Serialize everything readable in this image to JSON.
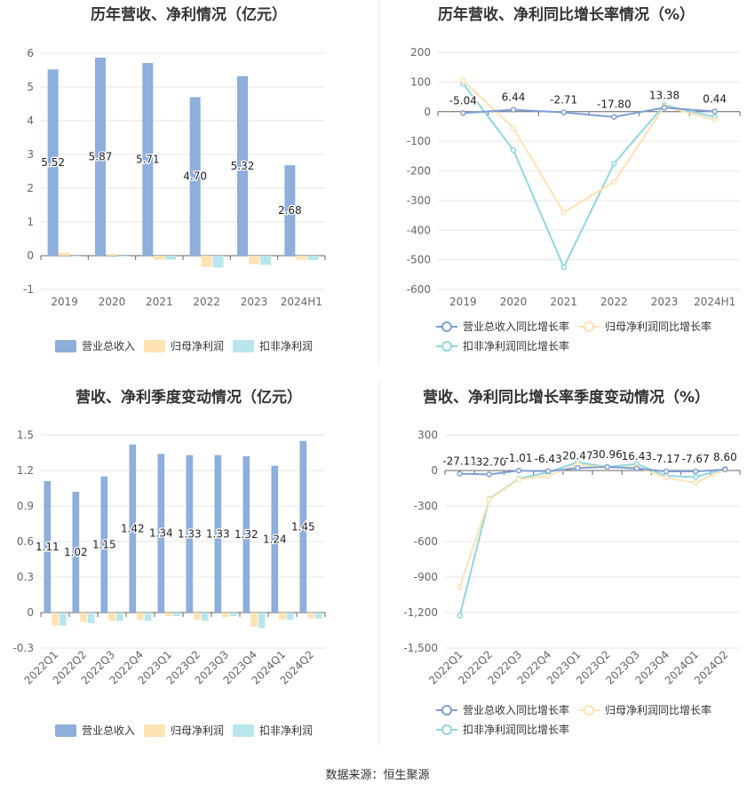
{
  "source": "数据来源：恒生聚源",
  "chart_data": [
    {
      "type": "bar",
      "title": "历年营收、净利情况（亿元）",
      "categories": [
        "2019",
        "2020",
        "2021",
        "2022",
        "2023",
        "2024H1"
      ],
      "ylim": [
        -1,
        6
      ],
      "yticks": [
        "-1",
        "0",
        "1",
        "2",
        "3",
        "4",
        "5",
        "6"
      ],
      "legend_position": "bottom",
      "grid": true,
      "series": [
        {
          "name": "营业总收入",
          "color": "#8eaedc",
          "values": [
            5.52,
            5.87,
            5.71,
            4.7,
            5.32,
            2.68
          ],
          "labels": [
            "5.52",
            "5.87",
            "5.71",
            "4.70",
            "5.32",
            "2.68"
          ]
        },
        {
          "name": "归母净利润",
          "color": "#fde2b3",
          "values": [
            0.09,
            0.05,
            -0.12,
            -0.33,
            -0.25,
            -0.12
          ]
        },
        {
          "name": "扣非净利润",
          "color": "#b8e6ea",
          "values": [
            -0.01,
            -0.03,
            -0.12,
            -0.35,
            -0.27,
            -0.13
          ]
        }
      ]
    },
    {
      "type": "line",
      "title": "历年营收、净利同比增长率情况（%）",
      "categories": [
        "2019",
        "2020",
        "2021",
        "2022",
        "2023",
        "2024H1"
      ],
      "ylim": [
        -600,
        200
      ],
      "yticks": [
        "-600",
        "-500",
        "-400",
        "-300",
        "-200",
        "-100",
        "0",
        "100",
        "200"
      ],
      "legend_position": "bottom",
      "grid": true,
      "series": [
        {
          "name": "营业总收入同比增长率",
          "color": "#7f9fd3",
          "values": [
            -5.04,
            6.44,
            -2.71,
            -17.8,
            13.38,
            0.44
          ],
          "labels": [
            "-5.04",
            "6.44",
            "-2.71",
            "-17.80",
            "13.38",
            "0.44"
          ]
        },
        {
          "name": "归母净利润同比增长率",
          "color": "#fde2b3",
          "values": [
            105,
            -55,
            -340,
            -237,
            18,
            -28
          ]
        },
        {
          "name": "扣非净利润同比增长率",
          "color": "#8fd7dd",
          "values": [
            95,
            -130,
            -525,
            -175,
            22,
            -18
          ]
        }
      ]
    },
    {
      "type": "bar",
      "title": "营收、净利季度变动情况（亿元）",
      "categories": [
        "2022Q1",
        "2022Q2",
        "2022Q3",
        "2022Q4",
        "2023Q1",
        "2023Q2",
        "2023Q3",
        "2023Q4",
        "2024Q1",
        "2024Q2"
      ],
      "ylim": [
        -0.3,
        1.5
      ],
      "yticks": [
        "-0.3",
        "0",
        "0.3",
        "0.6",
        "0.9",
        "1.2",
        "1.5"
      ],
      "legend_position": "bottom",
      "grid": true,
      "series": [
        {
          "name": "营业总收入",
          "color": "#8eaedc",
          "values": [
            1.11,
            1.02,
            1.15,
            1.42,
            1.34,
            1.33,
            1.33,
            1.32,
            1.24,
            1.45
          ],
          "labels": [
            "1.11",
            "1.02",
            "1.15",
            "1.42",
            "1.34",
            "1.33",
            "1.33",
            "1.32",
            "1.24",
            "1.45"
          ]
        },
        {
          "name": "归母净利润",
          "color": "#fde2b3",
          "values": [
            -0.11,
            -0.08,
            -0.07,
            -0.06,
            -0.03,
            -0.06,
            -0.04,
            -0.12,
            -0.06,
            -0.05
          ]
        },
        {
          "name": "扣非净利润",
          "color": "#b8e6ea",
          "values": [
            -0.11,
            -0.09,
            -0.07,
            -0.07,
            -0.03,
            -0.07,
            -0.03,
            -0.13,
            -0.06,
            -0.05
          ]
        }
      ]
    },
    {
      "type": "line",
      "title": "营收、净利同比增长率季度变动情况（%）",
      "categories": [
        "2022Q1",
        "2022Q2",
        "2022Q3",
        "2022Q4",
        "2023Q1",
        "2023Q2",
        "2023Q3",
        "2023Q4",
        "2024Q1",
        "2024Q2"
      ],
      "ylim": [
        -1500,
        300
      ],
      "yticks": [
        "-1,500",
        "-1,200",
        "-900",
        "-600",
        "-300",
        "0",
        "300"
      ],
      "legend_position": "bottom",
      "grid": true,
      "series": [
        {
          "name": "营业总收入同比增长率",
          "color": "#7f9fd3",
          "values": [
            -27.11,
            -32.7,
            -1.01,
            -6.43,
            20.47,
            30.96,
            16.43,
            -7.17,
            -7.67,
            8.6
          ],
          "labels": [
            "-27.11",
            "-32.70",
            "-1.01",
            "-6.43",
            "20.47",
            "30.96",
            "16.43",
            "-7.17",
            "-7.67",
            "8.60"
          ]
        },
        {
          "name": "归母净利润同比增长率",
          "color": "#fde2b3",
          "values": [
            -985,
            -245,
            -75,
            -45,
            50,
            25,
            30,
            -60,
            -105,
            10
          ]
        },
        {
          "name": "扣非净利润同比增长率",
          "color": "#8fd7dd",
          "values": [
            -1225,
            -240,
            -70,
            -15,
            70,
            30,
            55,
            -45,
            -55,
            15
          ]
        }
      ]
    }
  ]
}
